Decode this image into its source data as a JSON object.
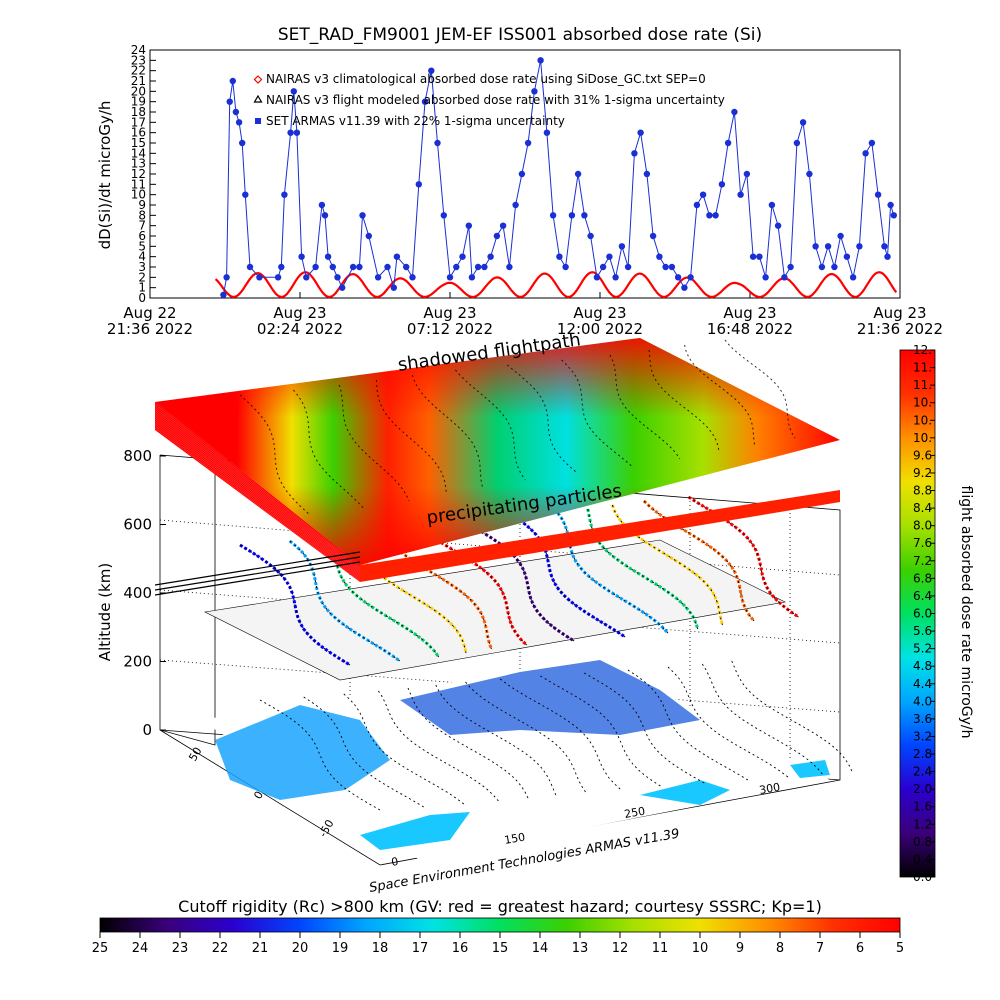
{
  "chart_data": [
    {
      "type": "line",
      "title": "SET_RAD_FM9001  JEM-EF ISS001 absorbed dose rate (Si)",
      "ylabel": "dD(Si)/dt microGy/h",
      "xlabel": "",
      "ylim": [
        0,
        24
      ],
      "x_ticks": [
        {
          "line1": "Aug 22",
          "line2": "21:36 2022"
        },
        {
          "line1": "Aug 23",
          "line2": "02:24 2022"
        },
        {
          "line1": "Aug 23",
          "line2": "07:12 2022"
        },
        {
          "line1": "Aug 23",
          "line2": "12:00 2022"
        },
        {
          "line1": "Aug 23",
          "line2": "16:48 2022"
        },
        {
          "line1": "Aug 23",
          "line2": "21:36 2022"
        }
      ],
      "x_hours_since_first_tick": [
        0,
        4.8,
        9.6,
        14.4,
        19.2,
        24
      ],
      "legend": [
        "NAIRAS v3 climatological absorbed dose rate using SiDose_GC.txt SEP=0",
        "NAIRAS v3 flight modeled absorbed dose rate with 31% 1-sigma uncertainty",
        "SET ARMAS v11.39 with 22% 1-sigma uncertainty"
      ],
      "legend_placement": "top-left",
      "series": [
        {
          "name": "NAIRAS v3 climatological absorbed dose rate using SiDose_GC.txt SEP=0",
          "color": "#ff0000",
          "marker": "diamond",
          "orbital_period_h": 1.53,
          "max_value": 2.5,
          "min_value": 0.1
        },
        {
          "name": "SET ARMAS v11.39 with 22% 1-sigma uncertainty",
          "color": "#1a2fd4",
          "marker": "dot",
          "x_hours": [
            2.35,
            2.45,
            2.55,
            2.65,
            2.75,
            2.85,
            2.95,
            3.05,
            3.2,
            3.5,
            4.1,
            4.2,
            4.3,
            4.5,
            4.6,
            4.7,
            4.85,
            5.0,
            5.3,
            5.5,
            5.6,
            5.7,
            5.85,
            6.0,
            6.15,
            6.5,
            6.7,
            6.8,
            7.0,
            7.3,
            7.6,
            7.8,
            7.9,
            8.2,
            8.4,
            8.6,
            8.8,
            9.0,
            9.2,
            9.4,
            9.6,
            9.8,
            10.0,
            10.2,
            10.3,
            10.5,
            10.7,
            10.9,
            11.1,
            11.3,
            11.5,
            11.7,
            11.9,
            12.1,
            12.3,
            12.5,
            12.7,
            12.9,
            13.1,
            13.3,
            13.5,
            13.7,
            13.9,
            14.1,
            14.3,
            14.5,
            14.7,
            14.9,
            15.1,
            15.3,
            15.5,
            15.7,
            15.9,
            16.1,
            16.3,
            16.5,
            16.7,
            16.9,
            17.1,
            17.3,
            17.5,
            17.7,
            17.9,
            18.1,
            18.3,
            18.5,
            18.7,
            18.9,
            19.1,
            19.3,
            19.5,
            19.7,
            19.9,
            20.1,
            20.3,
            20.5,
            20.7,
            20.9,
            21.1,
            21.3,
            21.5,
            21.7,
            21.9,
            22.1,
            22.3,
            22.5,
            22.7,
            22.9,
            23.1,
            23.3,
            23.5,
            23.6,
            23.7,
            23.8
          ],
          "values": [
            0.3,
            2,
            19,
            21,
            18,
            17,
            15,
            10,
            3,
            2,
            2,
            3,
            10,
            16,
            20,
            16,
            4,
            2,
            3,
            9,
            8,
            4,
            3,
            2,
            1,
            3,
            3,
            8,
            6,
            2,
            3,
            1,
            4,
            3,
            2,
            11,
            19,
            22,
            15,
            8,
            2,
            3,
            4,
            7,
            2,
            3,
            3,
            4,
            6,
            7,
            3,
            9,
            12,
            15,
            20,
            23,
            16,
            8,
            4,
            3,
            8,
            12,
            8,
            6,
            2,
            3,
            4,
            2,
            5,
            3,
            14,
            16,
            12,
            6,
            4,
            3,
            3,
            2,
            1,
            2,
            9,
            10,
            8,
            8,
            11,
            15,
            18,
            10,
            12,
            4,
            4,
            2,
            9,
            7,
            2,
            3,
            15,
            17,
            12,
            5,
            3,
            5,
            3,
            6,
            4,
            2,
            5,
            14,
            15,
            10,
            5,
            4,
            9,
            8
          ]
        }
      ]
    },
    {
      "type": "heatmap",
      "subtitle_top": "shadowed flightpath",
      "subtitle_mid": "precipitating particles",
      "ylabel": "Altitude (km)",
      "z_ticks": [
        "0",
        "200",
        "400",
        "600",
        "800"
      ],
      "lon_ticks": [
        "0",
        "150",
        "250",
        "300"
      ],
      "lat_ticks": [
        "50",
        "0",
        "-50"
      ],
      "colorbar_label": "flight absorbed dose rate microGy/h",
      "colorbar_ticks": [
        "0.0",
        "0.4",
        "0.8",
        "1.2",
        "1.6",
        "2.0",
        "2.4",
        "2.8",
        "3.2",
        "3.6",
        "4.0",
        "4.4",
        "4.8",
        "5.2",
        "5.6",
        "6.0",
        "6.4",
        "6.8",
        "7.2",
        "7.6",
        "8.0",
        "8.4",
        "8.8",
        "9.2",
        "9.6",
        "10.",
        "10.",
        "10.",
        "11.",
        "11.",
        "12."
      ],
      "credit": "Space Environment Technologies ARMAS v11.39"
    },
    {
      "type": "colorbar",
      "title": "Cutoff rigidity (Rc) >800 km (GV: red = greatest hazard; courtesy SSSRC; Kp=1)",
      "ticks": [
        "25",
        "24",
        "23",
        "22",
        "21",
        "20",
        "19",
        "18",
        "17",
        "16",
        "15",
        "14",
        "13",
        "12",
        "11",
        "10",
        "9",
        "8",
        "7",
        "6",
        "5"
      ]
    }
  ],
  "colors": {
    "rainbow": [
      "#000000",
      "#3a007a",
      "#2a00d0",
      "#0045ff",
      "#00a6ff",
      "#00e3e3",
      "#00e060",
      "#3cd000",
      "#a6e000",
      "#f0e000",
      "#ff9000",
      "#ff3000",
      "#ff0000"
    ],
    "ocean": "#19c8ff",
    "land_track": "#0a4fd8",
    "series_blue": "#1a2fd4",
    "series_red": "#ff0000"
  }
}
